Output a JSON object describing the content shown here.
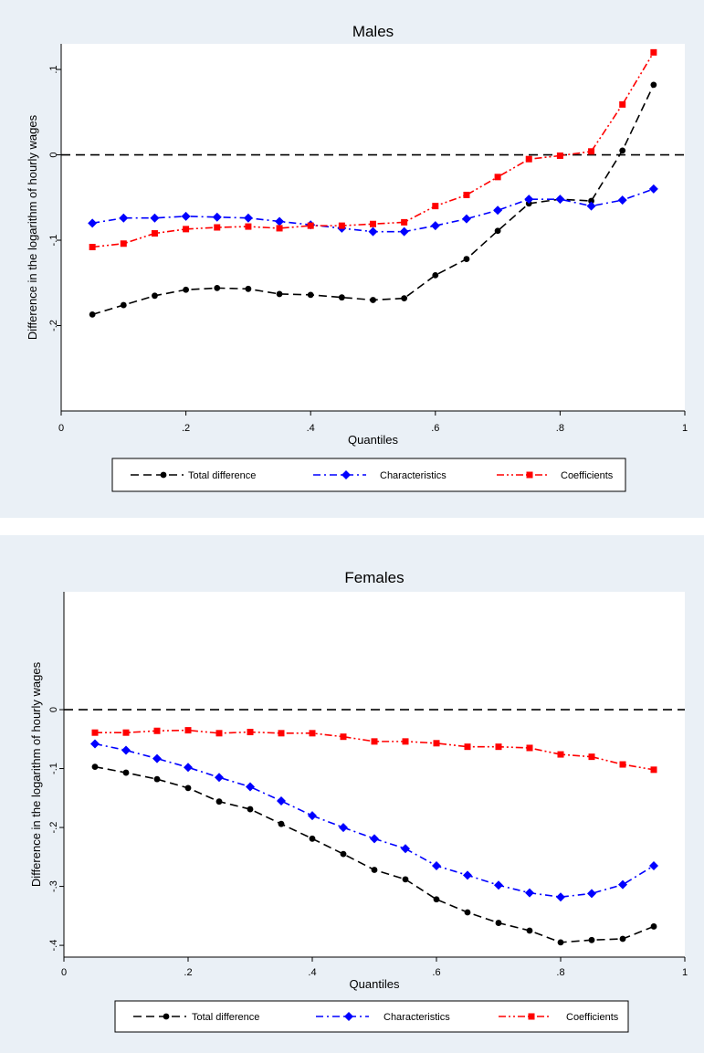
{
  "chart_data": [
    {
      "type": "line",
      "title": "Males",
      "xlabel": "Quantiles",
      "ylabel": "Difference in the logarithm of hourly wages",
      "xlim": [
        0,
        1
      ],
      "ylim": [
        -0.3,
        0.13
      ],
      "x_ticks": [
        0,
        0.2,
        0.4,
        0.6,
        0.8,
        1
      ],
      "x_tick_labels": [
        "0",
        ".2",
        ".4",
        ".6",
        ".8",
        "1"
      ],
      "y_ticks": [
        -0.2,
        -0.1,
        0,
        0.1
      ],
      "y_tick_labels": [
        "-.2",
        "-.1",
        "0",
        ".1"
      ],
      "reference_line": 0,
      "grid": false,
      "legend_position": "bottom",
      "x": [
        0.05,
        0.1,
        0.15,
        0.2,
        0.25,
        0.3,
        0.35,
        0.4,
        0.45,
        0.5,
        0.55,
        0.6,
        0.65,
        0.7,
        0.75,
        0.8,
        0.85,
        0.9,
        0.95
      ],
      "series": [
        {
          "name": "Total difference",
          "color": "#000000",
          "dash": "dash",
          "marker": "circle",
          "values": [
            -0.187,
            -0.176,
            -0.165,
            -0.158,
            -0.156,
            -0.157,
            -0.163,
            -0.164,
            -0.167,
            -0.17,
            -0.168,
            -0.141,
            -0.122,
            -0.089,
            -0.057,
            -0.052,
            -0.054,
            0.005,
            0.082
          ]
        },
        {
          "name": "Characteristics",
          "color": "#0000ff",
          "dash": "dashdot",
          "marker": "diamond",
          "values": [
            -0.08,
            -0.074,
            -0.074,
            -0.072,
            -0.073,
            -0.074,
            -0.078,
            -0.082,
            -0.086,
            -0.09,
            -0.09,
            -0.083,
            -0.075,
            -0.065,
            -0.052,
            -0.052,
            -0.06,
            -0.053,
            -0.04
          ]
        },
        {
          "name": "Coefficients",
          "color": "#ff0000",
          "dash": "dashdotdot",
          "marker": "square",
          "values": [
            -0.108,
            -0.104,
            -0.092,
            -0.087,
            -0.085,
            -0.084,
            -0.086,
            -0.083,
            -0.083,
            -0.081,
            -0.079,
            -0.06,
            -0.047,
            -0.026,
            -0.005,
            -0.001,
            0.004,
            0.059,
            0.12
          ]
        }
      ]
    },
    {
      "type": "line",
      "title": "Females",
      "xlabel": "Quantiles",
      "ylabel": "Difference in the logarithm of hourly wages",
      "xlim": [
        0,
        1
      ],
      "ylim": [
        -0.42,
        0.2
      ],
      "x_ticks": [
        0,
        0.2,
        0.4,
        0.6,
        0.8,
        1
      ],
      "x_tick_labels": [
        "0",
        ".2",
        ".4",
        ".6",
        ".8",
        "1"
      ],
      "y_ticks": [
        -0.4,
        -0.3,
        -0.2,
        -0.1,
        0
      ],
      "y_tick_labels": [
        "-.4",
        "-.3",
        "-.2",
        "-.1",
        "0"
      ],
      "reference_line": 0,
      "grid": false,
      "legend_position": "bottom",
      "x": [
        0.05,
        0.1,
        0.15,
        0.2,
        0.25,
        0.3,
        0.35,
        0.4,
        0.45,
        0.5,
        0.55,
        0.6,
        0.65,
        0.7,
        0.75,
        0.8,
        0.85,
        0.9,
        0.95
      ],
      "series": [
        {
          "name": "Total difference",
          "color": "#000000",
          "dash": "dash",
          "marker": "circle",
          "values": [
            -0.097,
            -0.107,
            -0.118,
            -0.133,
            -0.156,
            -0.169,
            -0.194,
            -0.219,
            -0.245,
            -0.272,
            -0.288,
            -0.322,
            -0.344,
            -0.362,
            -0.375,
            -0.395,
            -0.391,
            -0.389,
            -0.368
          ]
        },
        {
          "name": "Characteristics",
          "color": "#0000ff",
          "dash": "dashdot",
          "marker": "diamond",
          "values": [
            -0.058,
            -0.069,
            -0.083,
            -0.098,
            -0.115,
            -0.131,
            -0.155,
            -0.18,
            -0.2,
            -0.219,
            -0.236,
            -0.265,
            -0.281,
            -0.298,
            -0.311,
            -0.318,
            -0.312,
            -0.297,
            -0.265
          ]
        },
        {
          "name": "Coefficients",
          "color": "#ff0000",
          "dash": "dashdotdot",
          "marker": "square",
          "values": [
            -0.039,
            -0.039,
            -0.036,
            -0.035,
            -0.04,
            -0.038,
            -0.04,
            -0.04,
            -0.046,
            -0.054,
            -0.054,
            -0.057,
            -0.063,
            -0.063,
            -0.065,
            -0.076,
            -0.08,
            -0.093,
            -0.102
          ]
        }
      ]
    }
  ]
}
